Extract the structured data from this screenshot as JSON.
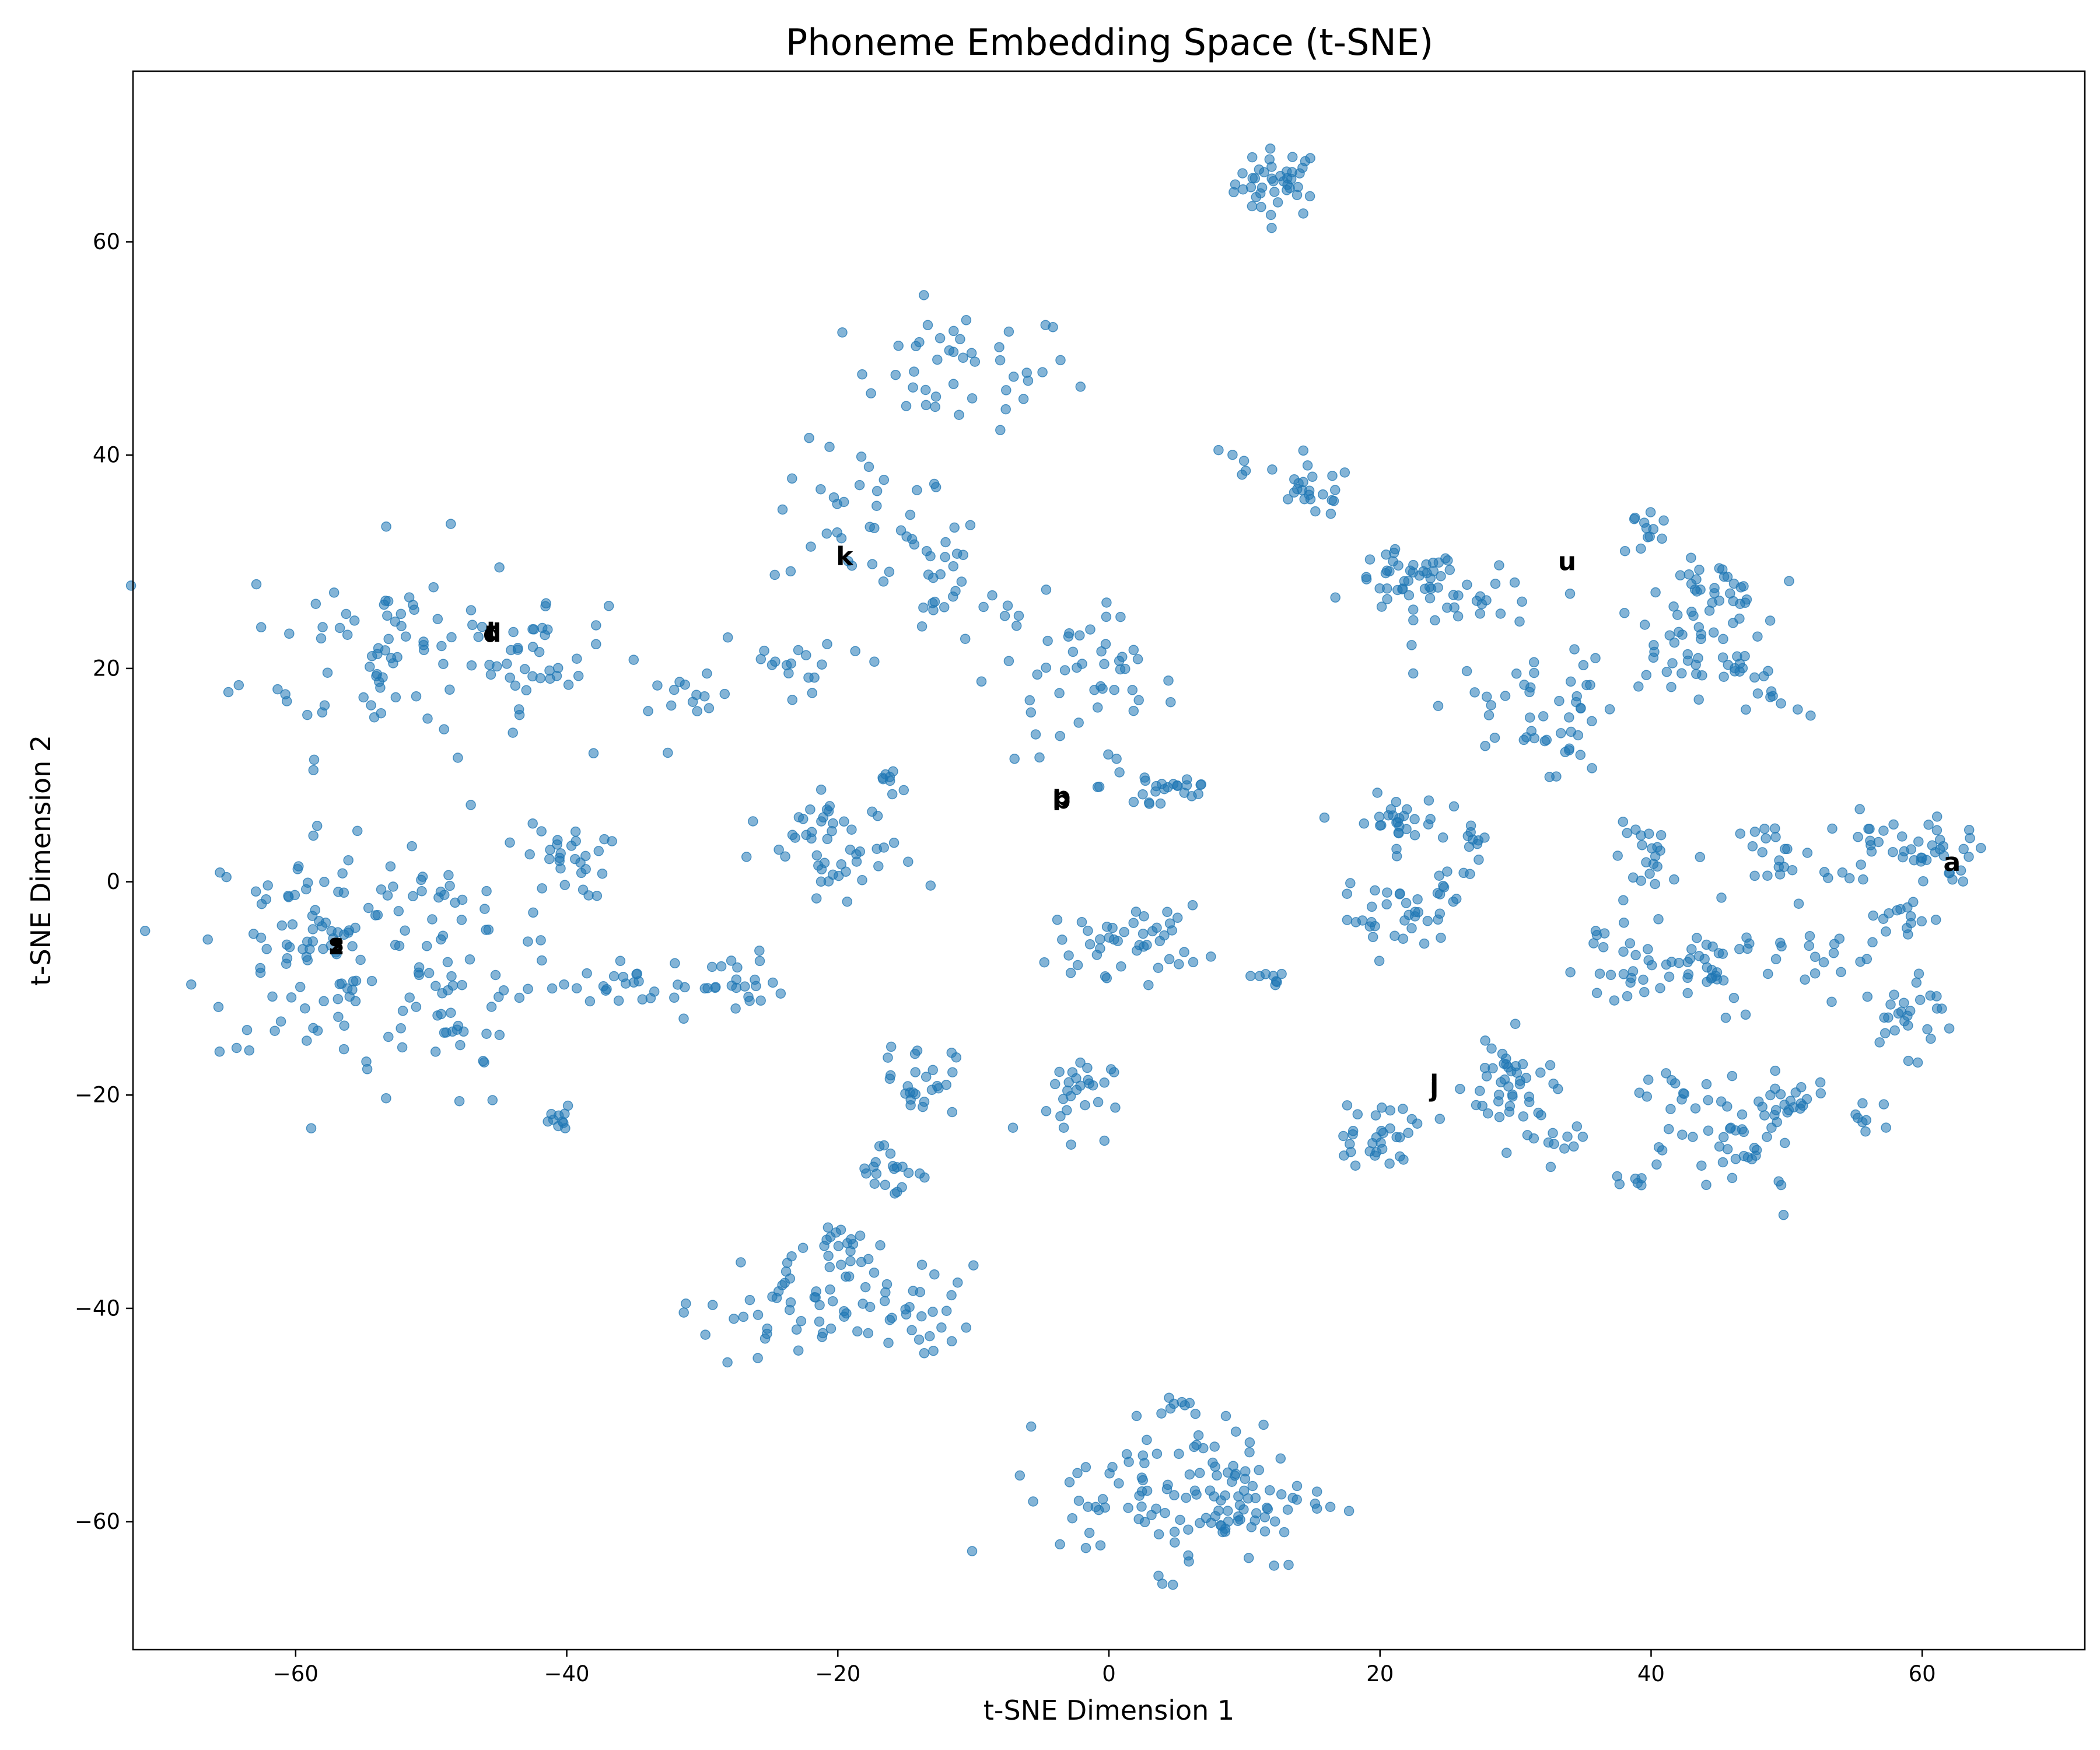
{
  "chart_data": {
    "type": "scatter",
    "title": "Phoneme Embedding Space (t-SNE)",
    "xlabel": "t-SNE Dimension 1",
    "ylabel": "t-SNE Dimension 2",
    "xlim": [
      -72,
      72
    ],
    "ylim": [
      -72,
      76
    ],
    "xticks": [
      -60,
      -40,
      -20,
      0,
      20,
      40,
      60
    ],
    "yticks": [
      -60,
      -40,
      -20,
      0,
      20,
      40,
      60
    ],
    "grid": false,
    "point_color": "#1f77b4",
    "point_alpha": 0.55,
    "annotations": [
      {
        "text": "k",
        "x": -19.5,
        "y": 30.5
      },
      {
        "text": "u",
        "x": 33.8,
        "y": 30
      },
      {
        "text": "t",
        "x": -45.5,
        "y": 23.5
      },
      {
        "text": "d",
        "x": -45.5,
        "y": 23.3
      },
      {
        "text": "p",
        "x": -3.5,
        "y": 8
      },
      {
        "text": "b",
        "x": -3.5,
        "y": 7.7
      },
      {
        "text": "a",
        "x": 62.2,
        "y": 1.8
      },
      {
        "text": "s",
        "x": -57,
        "y": -5.8
      },
      {
        "text": "z",
        "x": -57,
        "y": -6
      },
      {
        "text": "i",
        "x": 24,
        "y": -19
      },
      {
        "text": "j",
        "x": 24,
        "y": -19.3
      }
    ],
    "clusters": [
      {
        "cx": 12.5,
        "cy": 65.5,
        "sx": 1.6,
        "sy": 1.6,
        "n": 42
      },
      {
        "cx": -11,
        "cy": 48,
        "sx": 4.2,
        "sy": 2.8,
        "n": 44
      },
      {
        "cx": -18,
        "cy": 34,
        "sx": 3.5,
        "sy": 3.5,
        "n": 32
      },
      {
        "cx": -14,
        "cy": 29,
        "sx": 2.5,
        "sy": 3,
        "n": 24
      },
      {
        "cx": -53,
        "cy": 22,
        "sx": 5.5,
        "sy": 5,
        "n": 80
      },
      {
        "cx": -42,
        "cy": 21.5,
        "sx": 2.5,
        "sy": 2.5,
        "n": 32
      },
      {
        "cx": -31,
        "cy": 16.5,
        "sx": 1.5,
        "sy": 1.3,
        "n": 14
      },
      {
        "cx": -22,
        "cy": 21,
        "sx": 3.5,
        "sy": 1.5,
        "n": 18
      },
      {
        "cx": -7,
        "cy": 23,
        "sx": 2.5,
        "sy": 2,
        "n": 14
      },
      {
        "cx": -1,
        "cy": 18,
        "sx": 3,
        "sy": 3.5,
        "n": 40
      },
      {
        "cx": 4,
        "cy": 9,
        "sx": 2.3,
        "sy": 1.5,
        "n": 24
      },
      {
        "cx": 15,
        "cy": 36.5,
        "sx": 1.5,
        "sy": 1.2,
        "n": 22
      },
      {
        "cx": 10,
        "cy": 39,
        "sx": 2,
        "sy": 1,
        "n": 6
      },
      {
        "cx": 22,
        "cy": 28,
        "sx": 2,
        "sy": 1.5,
        "n": 44
      },
      {
        "cx": 28,
        "cy": 26,
        "sx": 2.5,
        "sy": 1.5,
        "n": 20
      },
      {
        "cx": 31,
        "cy": 17,
        "sx": 3,
        "sy": 2.5,
        "n": 30
      },
      {
        "cx": 35,
        "cy": 15,
        "sx": 1.5,
        "sy": 2.5,
        "n": 18
      },
      {
        "cx": 39.5,
        "cy": 33,
        "sx": 1,
        "sy": 1.5,
        "n": 12
      },
      {
        "cx": 44.5,
        "cy": 27,
        "sx": 1.8,
        "sy": 1.5,
        "n": 34
      },
      {
        "cx": 42,
        "cy": 22,
        "sx": 2.5,
        "sy": 2.2,
        "n": 30
      },
      {
        "cx": 46,
        "cy": 19.5,
        "sx": 1.8,
        "sy": 1,
        "n": 12
      },
      {
        "cx": 49.5,
        "cy": 16.5,
        "sx": 1.2,
        "sy": 1,
        "n": 8
      },
      {
        "cx": -58,
        "cy": -6,
        "sx": 4.5,
        "sy": 6,
        "n": 105
      },
      {
        "cx": -49,
        "cy": -8,
        "sx": 3,
        "sy": 6.5,
        "n": 65
      },
      {
        "cx": -40,
        "cy": 2,
        "sx": 1.5,
        "sy": 1.8,
        "n": 28
      },
      {
        "cx": -38,
        "cy": -10,
        "sx": 2.5,
        "sy": 0.8,
        "n": 14
      },
      {
        "cx": -30,
        "cy": -9.5,
        "sx": 3,
        "sy": 1.5,
        "n": 34
      },
      {
        "cx": -40.5,
        "cy": -22.5,
        "sx": 0.7,
        "sy": 0.7,
        "n": 10
      },
      {
        "cx": -20,
        "cy": 2,
        "sx": 3,
        "sy": 2.5,
        "n": 40
      },
      {
        "cx": -16,
        "cy": 9.5,
        "sx": 0.8,
        "sy": 0.8,
        "n": 8
      },
      {
        "cx": -20.5,
        "cy": 7,
        "sx": 0.7,
        "sy": 1.5,
        "n": 8
      },
      {
        "cx": 1.5,
        "cy": -5.5,
        "sx": 2.8,
        "sy": 1.6,
        "n": 45
      },
      {
        "cx": 12,
        "cy": -9,
        "sx": 0.8,
        "sy": 0.4,
        "n": 8
      },
      {
        "cx": 21,
        "cy": 5.5,
        "sx": 1.7,
        "sy": 1.3,
        "n": 28
      },
      {
        "cx": 27,
        "cy": 4.5,
        "sx": 0.8,
        "sy": 1.2,
        "n": 10
      },
      {
        "cx": 21,
        "cy": -3.5,
        "sx": 2,
        "sy": 1.5,
        "n": 30
      },
      {
        "cx": 25,
        "cy": -1,
        "sx": 1,
        "sy": 1.3,
        "n": 10
      },
      {
        "cx": 40,
        "cy": 2.5,
        "sx": 1.5,
        "sy": 1.5,
        "n": 20
      },
      {
        "cx": 50,
        "cy": 2,
        "sx": 1.7,
        "sy": 2,
        "n": 22
      },
      {
        "cx": 56,
        "cy": 3.5,
        "sx": 1.5,
        "sy": 1.5,
        "n": 20
      },
      {
        "cx": 61.5,
        "cy": 2.5,
        "sx": 1.7,
        "sy": 1.5,
        "n": 28
      },
      {
        "cx": 58,
        "cy": -3.5,
        "sx": 1.5,
        "sy": 1,
        "n": 14
      },
      {
        "cx": 46,
        "cy": -8,
        "sx": 5,
        "sy": 2,
        "n": 60
      },
      {
        "cx": 38,
        "cy": -8,
        "sx": 2,
        "sy": 3,
        "n": 20
      },
      {
        "cx": 59,
        "cy": -12.5,
        "sx": 1.8,
        "sy": 1.8,
        "n": 24
      },
      {
        "cx": 56,
        "cy": -22,
        "sx": 0.8,
        "sy": 1,
        "n": 8
      },
      {
        "cx": 47,
        "cy": -25,
        "sx": 2.5,
        "sy": 2.5,
        "n": 40
      },
      {
        "cx": 50,
        "cy": -21,
        "sx": 1.5,
        "sy": 1.2,
        "n": 16
      },
      {
        "cx": 42,
        "cy": -20,
        "sx": 2,
        "sy": 1.5,
        "n": 16
      },
      {
        "cx": 29.5,
        "cy": -19,
        "sx": 1.6,
        "sy": 2.2,
        "n": 40
      },
      {
        "cx": 32.5,
        "cy": -24.5,
        "sx": 1.3,
        "sy": 1,
        "n": 14
      },
      {
        "cx": 20,
        "cy": -23.5,
        "sx": 2,
        "sy": 1.5,
        "n": 32
      },
      {
        "cx": 39,
        "cy": -28,
        "sx": 0.5,
        "sy": 0.3,
        "n": 6
      },
      {
        "cx": -14,
        "cy": -18.5,
        "sx": 1.3,
        "sy": 1.7,
        "n": 26
      },
      {
        "cx": -16,
        "cy": -27,
        "sx": 1.6,
        "sy": 1.5,
        "n": 20
      },
      {
        "cx": -3,
        "cy": -20,
        "sx": 1.6,
        "sy": 2,
        "n": 28
      },
      {
        "cx": -23,
        "cy": -39.5,
        "sx": 3.5,
        "sy": 3,
        "n": 60
      },
      {
        "cx": -14,
        "cy": -41,
        "sx": 2,
        "sy": 2.5,
        "n": 24
      },
      {
        "cx": -20,
        "cy": -34,
        "sx": 1.5,
        "sy": 1,
        "n": 12
      },
      {
        "cx": 6.5,
        "cy": -57.5,
        "sx": 5,
        "sy": 3.5,
        "n": 130
      },
      {
        "cx": 5,
        "cy": -48.5,
        "sx": 1,
        "sy": 0.8,
        "n": 8
      }
    ]
  }
}
